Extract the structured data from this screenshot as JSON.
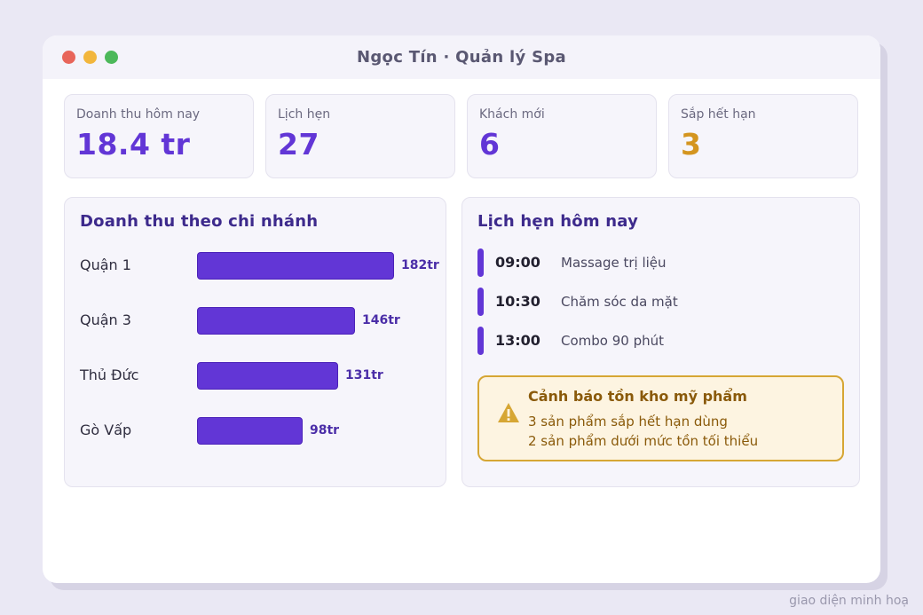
{
  "window": {
    "title": "Ngọc Tín · Quản lý Spa"
  },
  "kpis": [
    {
      "label": "Doanh thu hôm nay",
      "value": "18.4 tr",
      "color": "#6236d6"
    },
    {
      "label": "Lịch hẹn",
      "value": "27",
      "color": "#6236d6"
    },
    {
      "label": "Khách mới",
      "value": "6",
      "color": "#6236d6"
    },
    {
      "label": "Sắp hết hạn",
      "value": "3",
      "color": "#d4951f"
    }
  ],
  "revenue_panel": {
    "title": "Doanh thu theo chi nhánh"
  },
  "chart_data": {
    "type": "bar",
    "orientation": "horizontal",
    "categories": [
      "Quận 1",
      "Quận 3",
      "Thủ Đức",
      "Gò Vấp"
    ],
    "values": [
      182,
      146,
      131,
      98
    ],
    "value_labels": [
      "182tr",
      "146tr",
      "131tr",
      "98tr"
    ],
    "xlim": [
      0,
      230
    ],
    "bar_color": "#6236d6"
  },
  "appointments_panel": {
    "title": "Lịch hẹn hôm nay",
    "items": [
      {
        "time": "09:00",
        "name": "Massage trị liệu"
      },
      {
        "time": "10:30",
        "name": "Chăm sóc da mặt"
      },
      {
        "time": "13:00",
        "name": "Combo 90 phút"
      }
    ]
  },
  "alert": {
    "icon": "warning-icon",
    "title": "Cảnh báo tồn kho mỹ phẩm",
    "lines": [
      "3 sản phẩm sắp hết hạn dùng",
      "2 sản phẩm dưới mức tồn tối thiểu"
    ]
  },
  "footer": {
    "note": "giao diện minh hoạ"
  }
}
